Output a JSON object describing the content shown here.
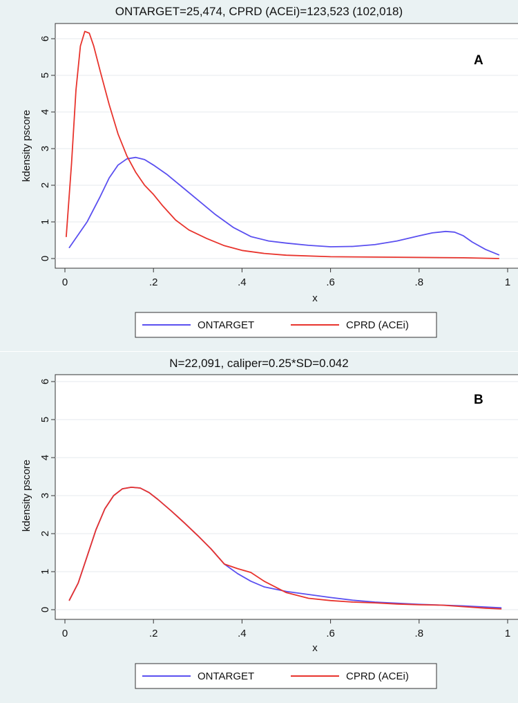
{
  "chart_data": [
    {
      "type": "line",
      "panel_letter": "A",
      "title": "ONTARGET=25,474,  CPRD (ACEi)=123,523 (102,018)",
      "xlabel": "x",
      "ylabel": "kdensity pscore",
      "xlim": [
        0,
        1
      ],
      "ylim": [
        0,
        6
      ],
      "xticks": [
        0,
        0.2,
        0.4,
        0.6,
        0.8,
        1
      ],
      "xtick_labels": [
        "0",
        ".2",
        ".4",
        ".6",
        ".8",
        "1"
      ],
      "yticks": [
        0,
        1,
        2,
        3,
        4,
        5,
        6
      ],
      "ytick_labels": [
        "0",
        "1",
        "2",
        "3",
        "4",
        "5",
        "6"
      ],
      "grid": "horizontal",
      "legend": "bottom",
      "series": [
        {
          "name": "ONTARGET",
          "color": "#5a4ff0",
          "x": [
            0.01,
            0.05,
            0.08,
            0.1,
            0.12,
            0.14,
            0.16,
            0.18,
            0.2,
            0.23,
            0.26,
            0.3,
            0.34,
            0.38,
            0.42,
            0.46,
            0.5,
            0.55,
            0.6,
            0.65,
            0.7,
            0.75,
            0.8,
            0.83,
            0.86,
            0.88,
            0.9,
            0.92,
            0.95,
            0.98
          ],
          "y": [
            0.3,
            1.0,
            1.7,
            2.2,
            2.55,
            2.72,
            2.76,
            2.7,
            2.55,
            2.3,
            2.0,
            1.6,
            1.2,
            0.85,
            0.6,
            0.48,
            0.42,
            0.36,
            0.32,
            0.33,
            0.38,
            0.48,
            0.62,
            0.7,
            0.74,
            0.72,
            0.62,
            0.45,
            0.25,
            0.1
          ]
        },
        {
          "name": "CPRD (ACEi)",
          "color": "#e8332c",
          "x": [
            0.003,
            0.015,
            0.025,
            0.035,
            0.045,
            0.055,
            0.065,
            0.08,
            0.1,
            0.12,
            0.14,
            0.16,
            0.18,
            0.2,
            0.22,
            0.25,
            0.28,
            0.32,
            0.36,
            0.4,
            0.45,
            0.5,
            0.6,
            0.7,
            0.8,
            0.9,
            0.98
          ],
          "y": [
            0.6,
            2.6,
            4.6,
            5.8,
            6.2,
            6.15,
            5.8,
            5.1,
            4.2,
            3.4,
            2.8,
            2.35,
            2.0,
            1.75,
            1.45,
            1.05,
            0.78,
            0.55,
            0.35,
            0.22,
            0.14,
            0.09,
            0.05,
            0.04,
            0.03,
            0.02,
            0.0
          ]
        }
      ]
    },
    {
      "type": "line",
      "panel_letter": "B",
      "title": "N=22,091, caliper=0.25*SD=0.042",
      "xlabel": "x",
      "ylabel": "kdensity pscore",
      "xlim": [
        0,
        1
      ],
      "ylim": [
        0,
        6
      ],
      "xticks": [
        0,
        0.2,
        0.4,
        0.6,
        0.8,
        1
      ],
      "xtick_labels": [
        "0",
        ".2",
        ".4",
        ".6",
        ".8",
        "1"
      ],
      "yticks": [
        0,
        1,
        2,
        3,
        4,
        5,
        6
      ],
      "ytick_labels": [
        "0",
        "1",
        "2",
        "3",
        "4",
        "5",
        "6"
      ],
      "grid": "horizontal",
      "legend": "bottom",
      "series": [
        {
          "name": "ONTARGET",
          "color": "#5a4ff0",
          "x": [
            0.01,
            0.03,
            0.05,
            0.07,
            0.09,
            0.11,
            0.13,
            0.15,
            0.17,
            0.19,
            0.21,
            0.24,
            0.27,
            0.3,
            0.33,
            0.36,
            0.39,
            0.42,
            0.45,
            0.5,
            0.55,
            0.6,
            0.65,
            0.7,
            0.75,
            0.8,
            0.85,
            0.9,
            0.95,
            0.985
          ],
          "y": [
            0.25,
            0.7,
            1.4,
            2.1,
            2.65,
            3.0,
            3.18,
            3.22,
            3.2,
            3.08,
            2.9,
            2.6,
            2.28,
            1.95,
            1.6,
            1.2,
            0.95,
            0.75,
            0.6,
            0.48,
            0.4,
            0.32,
            0.25,
            0.2,
            0.17,
            0.14,
            0.12,
            0.1,
            0.07,
            0.05
          ]
        },
        {
          "name": "CPRD (ACEi)",
          "color": "#e8332c",
          "x": [
            0.01,
            0.03,
            0.05,
            0.07,
            0.09,
            0.11,
            0.13,
            0.15,
            0.17,
            0.19,
            0.21,
            0.24,
            0.27,
            0.3,
            0.33,
            0.36,
            0.39,
            0.42,
            0.45,
            0.5,
            0.55,
            0.6,
            0.65,
            0.7,
            0.75,
            0.8,
            0.85,
            0.9,
            0.95,
            0.985
          ],
          "y": [
            0.25,
            0.7,
            1.4,
            2.1,
            2.65,
            3.0,
            3.18,
            3.22,
            3.2,
            3.08,
            2.9,
            2.6,
            2.28,
            1.95,
            1.6,
            1.2,
            1.08,
            0.98,
            0.75,
            0.45,
            0.3,
            0.24,
            0.2,
            0.18,
            0.15,
            0.13,
            0.12,
            0.08,
            0.04,
            0.02
          ]
        }
      ]
    }
  ]
}
